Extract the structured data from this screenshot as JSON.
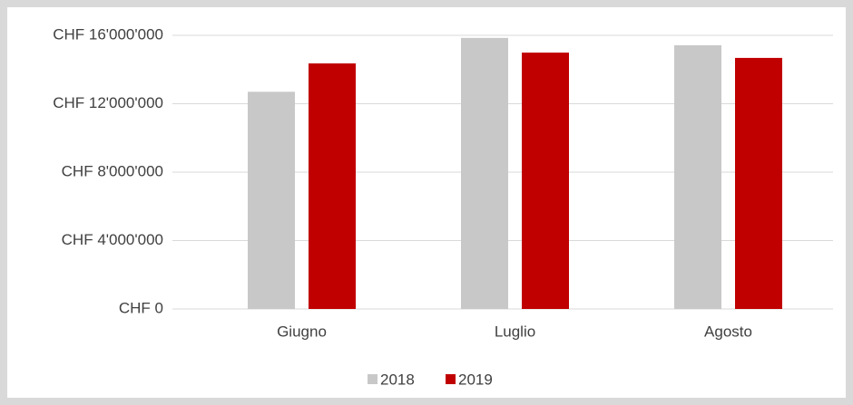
{
  "chart_data": {
    "type": "bar",
    "categories": [
      "Giugno",
      "Luglio",
      "Agosto"
    ],
    "series": [
      {
        "name": "2018",
        "color": "#c8c8c8",
        "values": [
          12700000,
          15850000,
          15420000
        ]
      },
      {
        "name": "2019",
        "color": "#c00000",
        "values": [
          14360000,
          14990000,
          14680000
        ]
      }
    ],
    "ylim": [
      0,
      16000000
    ],
    "yticks": [
      {
        "value": 0,
        "label": "CHF 0"
      },
      {
        "value": 4000000,
        "label": "CHF 4'000'000"
      },
      {
        "value": 8000000,
        "label": "CHF 8'000'000"
      },
      {
        "value": 12000000,
        "label": "CHF 12'000'000"
      },
      {
        "value": 16000000,
        "label": "CHF 16'000'000"
      }
    ],
    "grid": true,
    "legend": "bottom"
  }
}
